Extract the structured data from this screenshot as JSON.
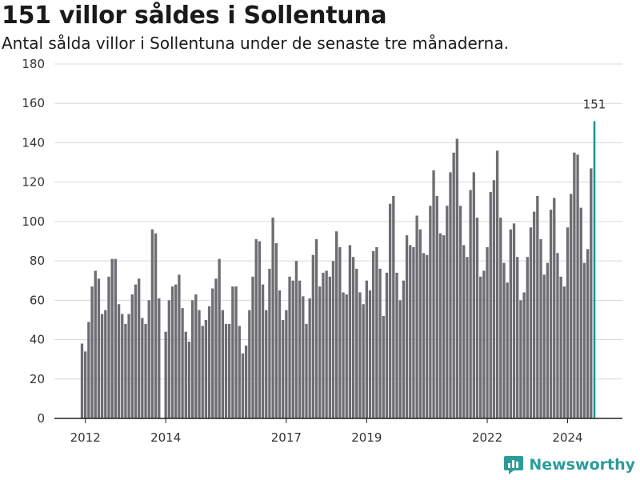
{
  "header": {
    "title": "151 villor såldes i Sollentuna",
    "subtitle": "Antal sålda villor i Sollentuna under de senaste tre månaderna."
  },
  "brand": {
    "name": "Newsworthy"
  },
  "colors": {
    "bar": "#6e6d72",
    "highlight": "#15958c",
    "grid": "#d9d9d9",
    "axis": "#222222"
  },
  "chart_data": {
    "type": "bar",
    "title": "151 villor såldes i Sollentuna",
    "subtitle": "Antal sålda villor i Sollentuna under de senaste tre månaderna.",
    "xlabel": "",
    "ylabel": "",
    "ylim": [
      0,
      180
    ],
    "yticks": [
      0,
      20,
      40,
      60,
      80,
      100,
      120,
      140,
      160,
      180
    ],
    "xticks": [
      "2012",
      "2014",
      "2017",
      "2019",
      "2022",
      "2024"
    ],
    "grid": true,
    "legend": "none",
    "values": [
      38,
      34,
      49,
      67,
      75,
      71,
      53,
      55,
      72,
      81,
      81,
      58,
      53,
      48,
      53,
      63,
      68,
      71,
      51,
      48,
      60,
      96,
      94,
      61,
      0,
      44,
      60,
      67,
      68,
      73,
      56,
      44,
      39,
      60,
      63,
      55,
      47,
      50,
      57,
      66,
      71,
      81,
      55,
      48,
      48,
      67,
      67,
      47,
      33,
      37,
      55,
      72,
      91,
      90,
      68,
      55,
      76,
      102,
      89,
      65,
      50,
      55,
      72,
      70,
      80,
      70,
      62,
      48,
      61,
      83,
      91,
      67,
      74,
      75,
      72,
      80,
      95,
      87,
      64,
      63,
      88,
      82,
      76,
      64,
      58,
      70,
      65,
      85,
      87,
      76,
      52,
      74,
      109,
      113,
      74,
      60,
      70,
      93,
      88,
      87,
      103,
      96,
      84,
      83,
      108,
      126,
      113,
      94,
      93,
      108,
      125,
      135,
      142,
      108,
      88,
      82,
      116,
      125,
      102,
      72,
      75,
      87,
      115,
      121,
      136,
      102,
      79,
      69,
      96,
      99,
      82,
      60,
      64,
      82,
      97,
      105,
      113,
      91,
      73,
      79,
      106,
      112,
      84,
      72,
      67,
      97,
      114,
      135,
      134,
      107,
      79,
      86,
      127,
      151
    ],
    "highlight": {
      "value": 151,
      "label": "151"
    }
  }
}
